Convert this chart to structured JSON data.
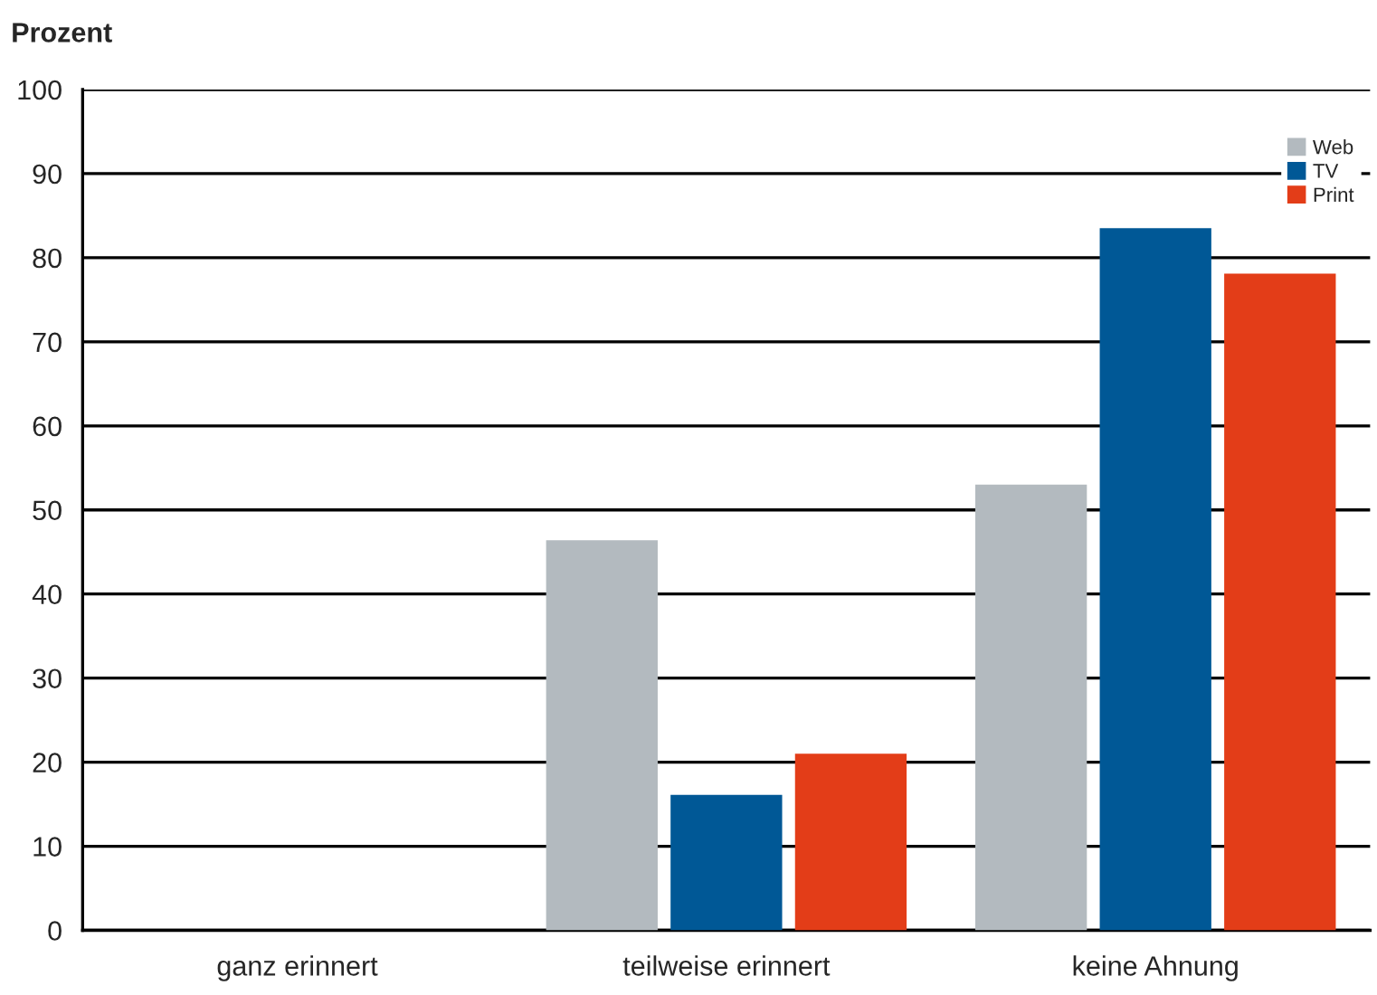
{
  "chart_data": {
    "type": "bar",
    "ylabel": "Prozent",
    "categories": [
      "ganz erinnert",
      "teilweise erinnert",
      "keine Ahnung"
    ],
    "series": [
      {
        "name": "Web",
        "color": "#b3babf",
        "values": [
          0,
          46.4,
          53.0
        ]
      },
      {
        "name": "TV",
        "color": "#005896",
        "values": [
          0,
          16.1,
          83.5
        ]
      },
      {
        "name": "Print",
        "color": "#e33d18",
        "values": [
          0,
          21.0,
          78.1
        ]
      }
    ],
    "ylim": [
      0,
      100
    ],
    "yticks": [
      0,
      10,
      20,
      30,
      40,
      50,
      60,
      70,
      80,
      90,
      100
    ],
    "grid": "y",
    "legend": "top right"
  }
}
